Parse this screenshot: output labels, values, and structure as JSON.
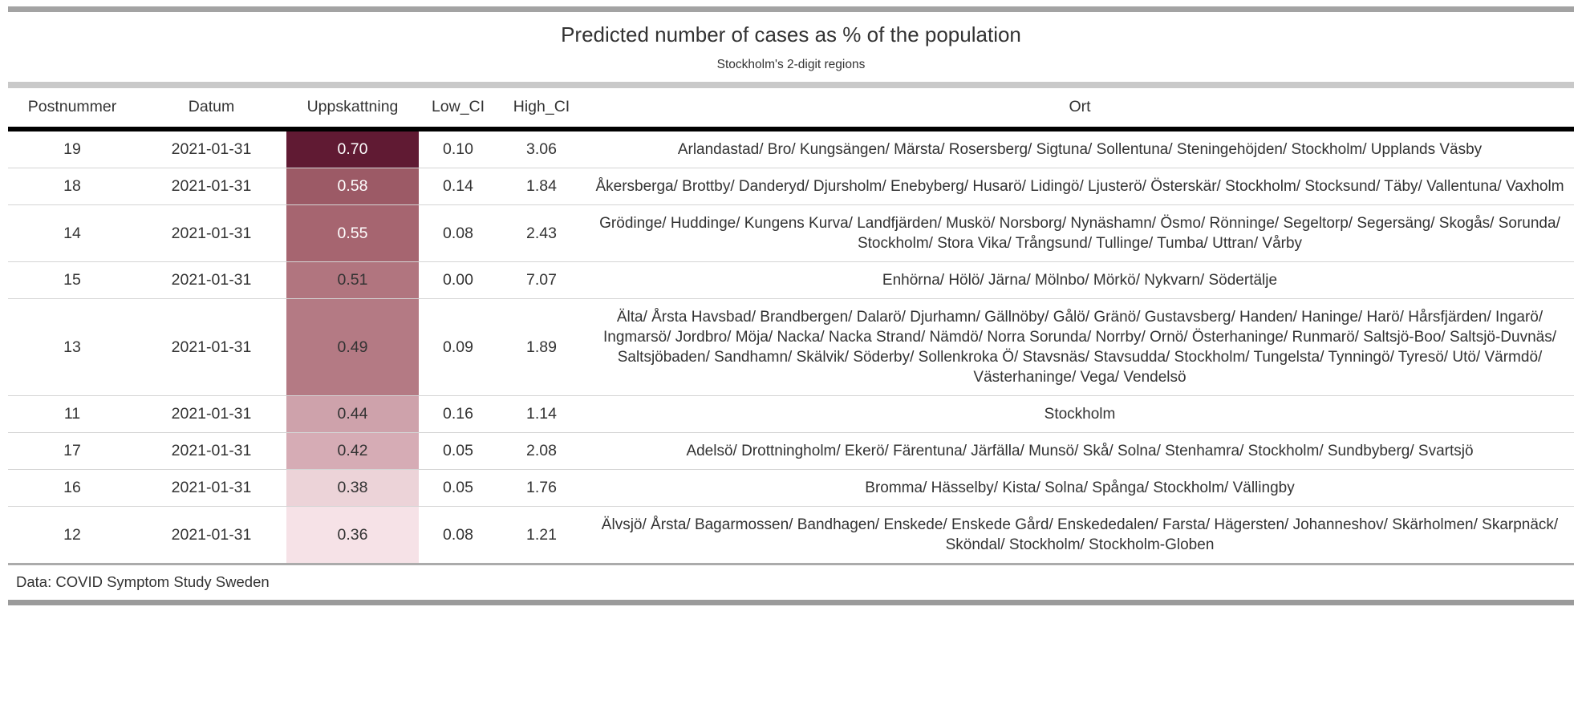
{
  "title": "Predicted number of cases as % of the population",
  "subtitle": "Stockholm's 2-digit regions",
  "source_note": "Data: COVID Symptom Study Sweden",
  "chart_data": {
    "type": "table",
    "title": "Predicted number of cases as % of the population",
    "subtitle": "Stockholm's 2-digit regions",
    "columns": [
      "Postnummer",
      "Datum",
      "Uppskattning",
      "Low_CI",
      "High_CI",
      "Ort"
    ],
    "heat_column": "Uppskattning",
    "heat_scale": {
      "min_value": 0.36,
      "max_value": 0.7,
      "min_color": "#F6E2E7",
      "max_color": "#601A33"
    },
    "rows": [
      {
        "postnummer": "19",
        "datum": "2021-01-31",
        "uppskattning": "0.70",
        "low_ci": "0.10",
        "high_ci": "3.06",
        "fill": "#601A33",
        "value_text_color": "#FFFFFF",
        "ort": "Arlandastad/ Bro/ Kungsängen/ Märsta/ Rosersberg/ Sigtuna/ Sollentuna/ Steningehöjden/ Stockholm/ Upplands Väsby"
      },
      {
        "postnummer": "18",
        "datum": "2021-01-31",
        "uppskattning": "0.58",
        "low_ci": "0.14",
        "high_ci": "1.84",
        "fill": "#9C5A66",
        "value_text_color": "#FFFFFF",
        "ort": "Åkersberga/ Brottby/ Danderyd/ Djursholm/ Enebyberg/ Husarö/ Lidingö/ Ljusterö/ Österskär/ Stockholm/ Stocksund/ Täby/ Vallentuna/ Vaxholm"
      },
      {
        "postnummer": "14",
        "datum": "2021-01-31",
        "uppskattning": "0.55",
        "low_ci": "0.08",
        "high_ci": "2.43",
        "fill": "#A66570",
        "value_text_color": "#FFFFFF",
        "ort": "Grödinge/ Huddinge/ Kungens Kurva/ Landfjärden/ Muskö/ Norsborg/ Nynäshamn/ Ösmo/ Rönninge/ Segeltorp/ Segersäng/ Skogås/ Sorunda/ Stockholm/ Stora Vika/ Trångsund/ Tullinge/ Tumba/ Uttran/ Vårby"
      },
      {
        "postnummer": "15",
        "datum": "2021-01-31",
        "uppskattning": "0.51",
        "low_ci": "0.00",
        "high_ci": "7.07",
        "fill": "#B1757F",
        "value_text_color": "#333333",
        "ort": "Enhörna/ Hölö/ Järna/ Mölnbo/ Mörkö/ Nykvarn/ Södertälje"
      },
      {
        "postnummer": "13",
        "datum": "2021-01-31",
        "uppskattning": "0.49",
        "low_ci": "0.09",
        "high_ci": "1.89",
        "fill": "#B47A84",
        "value_text_color": "#333333",
        "ort": "Älta/ Årsta Havsbad/ Brandbergen/ Dalarö/ Djurhamn/ Gällnöby/ Gålö/ Gränö/ Gustavsberg/ Handen/ Haninge/ Harö/ Hårsfjärden/ Ingarö/ Ingmarsö/ Jordbro/ Möja/ Nacka/ Nacka Strand/ Nämdö/ Norra Sorunda/ Norrby/ Ornö/ Österhaninge/ Runmarö/ Saltsjö-Boo/ Saltsjö-Duvnäs/ Saltsjöbaden/ Sandhamn/ Skälvik/ Söderby/ Sollenkroka Ö/ Stavsnäs/ Stavsudda/ Stockholm/ Tungelsta/ Tynningö/ Tyresö/ Utö/ Värmdö/ Västerhaninge/ Vega/ Vendelsö"
      },
      {
        "postnummer": "11",
        "datum": "2021-01-31",
        "uppskattning": "0.44",
        "low_ci": "0.16",
        "high_ci": "1.14",
        "fill": "#CEA2AB",
        "value_text_color": "#333333",
        "ort": "Stockholm"
      },
      {
        "postnummer": "17",
        "datum": "2021-01-31",
        "uppskattning": "0.42",
        "low_ci": "0.05",
        "high_ci": "2.08",
        "fill": "#D6ACB5",
        "value_text_color": "#333333",
        "ort": "Adelsö/ Drottningholm/ Ekerö/ Färentuna/ Järfälla/ Munsö/ Skå/ Solna/ Stenhamra/ Stockholm/ Sundbyberg/ Svartsjö"
      },
      {
        "postnummer": "16",
        "datum": "2021-01-31",
        "uppskattning": "0.38",
        "low_ci": "0.05",
        "high_ci": "1.76",
        "fill": "#ECD3D8",
        "value_text_color": "#333333",
        "ort": "Bromma/ Hässelby/ Kista/ Solna/ Spånga/ Stockholm/ Vällingby"
      },
      {
        "postnummer": "12",
        "datum": "2021-01-31",
        "uppskattning": "0.36",
        "low_ci": "0.08",
        "high_ci": "1.21",
        "fill": "#F6E2E7",
        "value_text_color": "#333333",
        "ort": "Älvsjö/ Årsta/ Bagarmossen/ Bandhagen/ Enskede/ Enskede Gård/ Enskededalen/ Farsta/ Hägersten/ Johanneshov/ Skärholmen/ Skarpnäck/ Sköndal/ Stockholm/ Stockholm-Globen"
      }
    ]
  }
}
